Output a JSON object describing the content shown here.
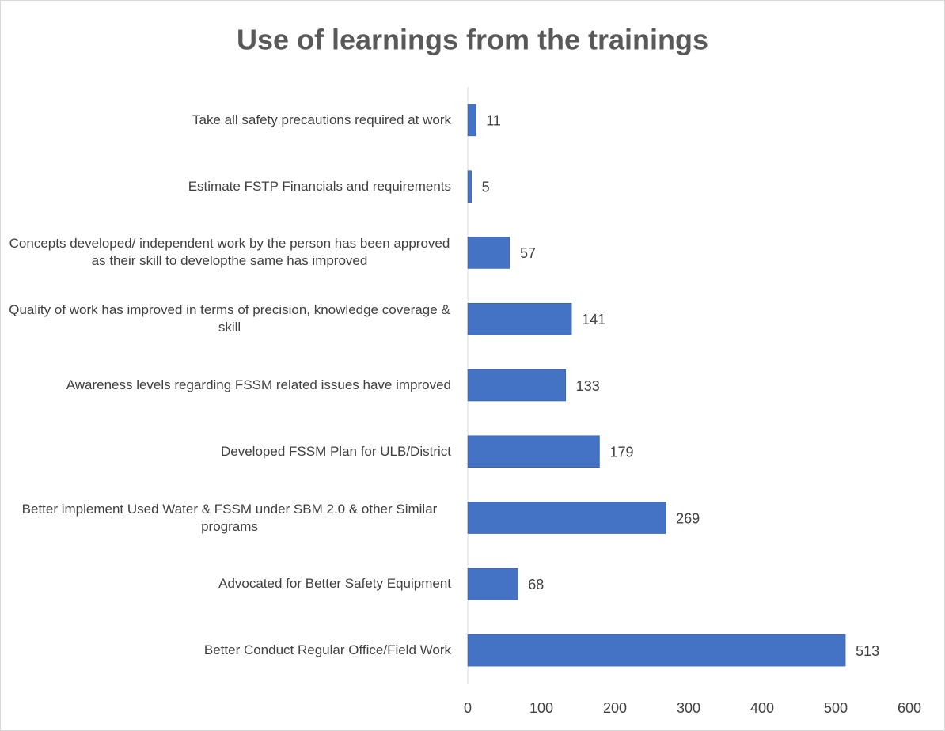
{
  "chart_data": {
    "type": "barh",
    "title": "Use of learnings from the trainings",
    "categories": [
      "Take all safety precautions required at work",
      "Estimate FSTP Financials and requirements",
      "Concepts developed/ independent work by the person has been approved as their skill to developthe same has improved",
      "Quality of work has improved in terms of precision, knowledge coverage & skill",
      "Awareness levels regarding FSSM related issues have improved",
      "Developed FSSM Plan for ULB/District",
      "Better implement Used Water & FSSM under SBM 2.0 & other Similar programs",
      "Advocated for Better Safety Equipment",
      "Better Conduct Regular Office/Field Work"
    ],
    "values": [
      11,
      5,
      57,
      141,
      133,
      179,
      269,
      68,
      513
    ],
    "color": "#4472c4",
    "xlim": [
      0,
      600
    ],
    "xticks": [
      0,
      100,
      200,
      300,
      400,
      500,
      600
    ],
    "grid": false
  }
}
